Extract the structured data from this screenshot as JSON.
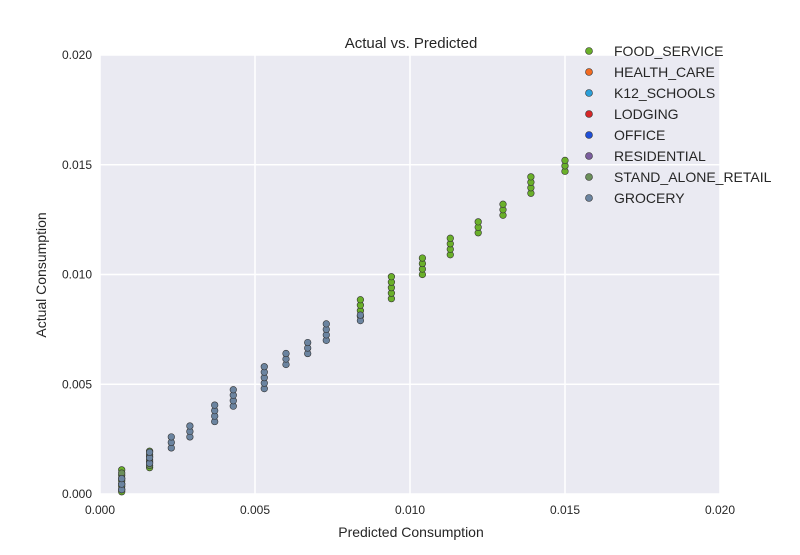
{
  "chart_data": {
    "type": "scatter",
    "title": "Actual vs. Predicted",
    "xlabel": "Predicted Consumption",
    "ylabel": "Actual Consumption",
    "xlim": [
      0.0,
      0.02
    ],
    "ylim": [
      0.0,
      0.02
    ],
    "xticks": [
      "0.000",
      "0.005",
      "0.010",
      "0.015",
      "0.020"
    ],
    "yticks": [
      "0.000",
      "0.005",
      "0.010",
      "0.015",
      "0.020"
    ],
    "grid": true,
    "legend_position": "top-right",
    "series": [
      {
        "name": "FOOD_SERVICE",
        "color": "#6ab02a",
        "groups": [
          {
            "x": 0.0007,
            "y_min": 0.0001,
            "y_max": 0.0011
          },
          {
            "x": 0.0016,
            "y_min": 0.0012,
            "y_max": 0.002
          },
          {
            "x": 0.0084,
            "y_min": 0.0081,
            "y_max": 0.0089
          },
          {
            "x": 0.0094,
            "y_min": 0.0089,
            "y_max": 0.0099
          },
          {
            "x": 0.0104,
            "y_min": 0.01,
            "y_max": 0.0108
          },
          {
            "x": 0.0113,
            "y_min": 0.0109,
            "y_max": 0.0118
          },
          {
            "x": 0.0122,
            "y_min": 0.0119,
            "y_max": 0.0126
          },
          {
            "x": 0.013,
            "y_min": 0.0127,
            "y_max": 0.0134
          },
          {
            "x": 0.0139,
            "y_min": 0.0137,
            "y_max": 0.0145
          },
          {
            "x": 0.015,
            "y_min": 0.0147,
            "y_max": 0.0152
          }
        ]
      },
      {
        "name": "HEALTH_CARE",
        "color": "#f26b21",
        "groups": []
      },
      {
        "name": "K12_SCHOOLS",
        "color": "#2b9fd9",
        "groups": []
      },
      {
        "name": "LODGING",
        "color": "#d62728",
        "groups": []
      },
      {
        "name": "OFFICE",
        "color": "#1f4fd8",
        "groups": []
      },
      {
        "name": "RESIDENTIAL",
        "color": "#7b5e9e",
        "groups": []
      },
      {
        "name": "STAND_ALONE_RETAIL",
        "color": "#6b8f5a",
        "groups": [
          {
            "x": 0.0007,
            "y_min": 0.0002,
            "y_max": 0.001
          },
          {
            "x": 0.0016,
            "y_min": 0.0013,
            "y_max": 0.0019
          }
        ]
      },
      {
        "name": "GROCERY",
        "color": "#6b84a0",
        "groups": [
          {
            "x": 0.0007,
            "y_min": 0.0002,
            "y_max": 0.0008
          },
          {
            "x": 0.0016,
            "y_min": 0.0014,
            "y_max": 0.002
          },
          {
            "x": 0.0023,
            "y_min": 0.0021,
            "y_max": 0.0026
          },
          {
            "x": 0.0029,
            "y_min": 0.0026,
            "y_max": 0.0033
          },
          {
            "x": 0.0037,
            "y_min": 0.0033,
            "y_max": 0.0041
          },
          {
            "x": 0.0043,
            "y_min": 0.004,
            "y_max": 0.0048
          },
          {
            "x": 0.0053,
            "y_min": 0.0048,
            "y_max": 0.0058
          },
          {
            "x": 0.006,
            "y_min": 0.0059,
            "y_max": 0.0065
          },
          {
            "x": 0.0067,
            "y_min": 0.0064,
            "y_max": 0.007
          },
          {
            "x": 0.0073,
            "y_min": 0.007,
            "y_max": 0.0078
          },
          {
            "x": 0.0084,
            "y_min": 0.0079,
            "y_max": 0.0083
          }
        ]
      }
    ]
  }
}
